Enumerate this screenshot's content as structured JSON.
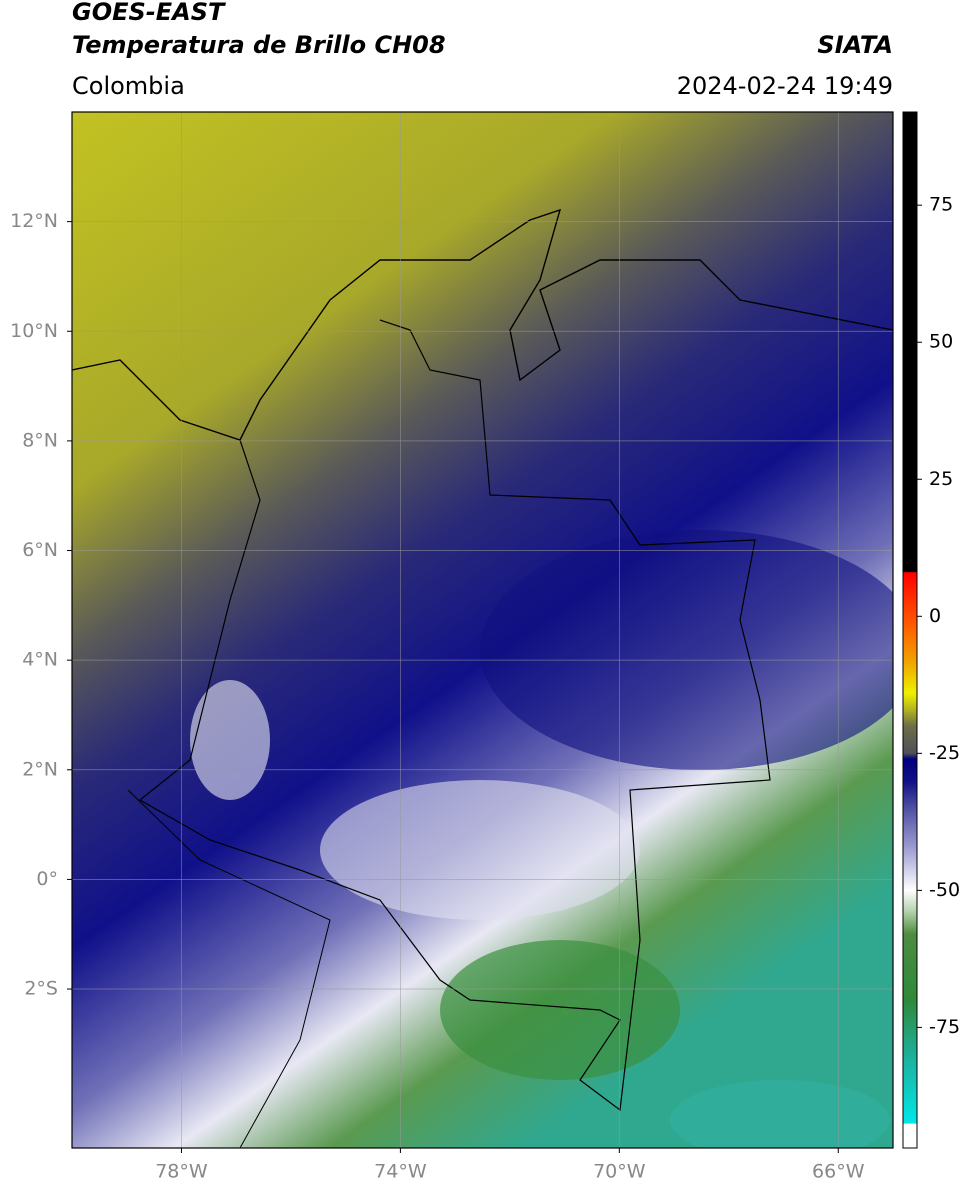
{
  "chart_data": {
    "type": "map",
    "title": "GOES-EAST",
    "subtitle": "Temperatura de Brillo CH08",
    "region": "Colombia",
    "source": "SIATA",
    "date": "2024-02-24 19:49",
    "xlim": [
      -80,
      -65
    ],
    "ylim": [
      -4.9,
      14
    ],
    "xticks": [
      {
        "value": -78,
        "label": "78°W"
      },
      {
        "value": -74,
        "label": "74°W"
      },
      {
        "value": -70,
        "label": "70°W"
      },
      {
        "value": -66,
        "label": "66°W"
      }
    ],
    "yticks": [
      {
        "value": -2,
        "label": "2°S"
      },
      {
        "value": 0,
        "label": "0°"
      },
      {
        "value": 2,
        "label": "2°N"
      },
      {
        "value": 4,
        "label": "4°N"
      },
      {
        "value": 6,
        "label": "6°N"
      },
      {
        "value": 8,
        "label": "8°N"
      },
      {
        "value": 10,
        "label": "10°N"
      },
      {
        "value": 12,
        "label": "12°N"
      }
    ],
    "grid": true,
    "colorbar": {
      "lim": [
        -97,
        92
      ],
      "ticks": [
        -75,
        -50,
        -25,
        0,
        25,
        50,
        75
      ],
      "colormap": [
        {
          "value": -97,
          "color": "#ffffff"
        },
        {
          "value": -92.6,
          "color": "#ffffff"
        },
        {
          "value": -92.5,
          "color": "#00e8e8"
        },
        {
          "value": -80,
          "color": "#1fae9a"
        },
        {
          "value": -70,
          "color": "#2e8a3a"
        },
        {
          "value": -58,
          "color": "#4e8c40"
        },
        {
          "value": -54,
          "color": "#b0d0a8"
        },
        {
          "value": -50,
          "color": "#ffffff"
        },
        {
          "value": -42,
          "color": "#9a9ad0"
        },
        {
          "value": -35,
          "color": "#5050a4"
        },
        {
          "value": -30,
          "color": "#101088"
        },
        {
          "value": -26,
          "color": "#00007e"
        },
        {
          "value": -25,
          "color": "#505058"
        },
        {
          "value": -20,
          "color": "#6e6e48"
        },
        {
          "value": -17,
          "color": "#b4b420"
        },
        {
          "value": -14,
          "color": "#f0f000"
        },
        {
          "value": -8,
          "color": "#f0a000"
        },
        {
          "value": -2,
          "color": "#ff6000"
        },
        {
          "value": 8,
          "color": "#ff0000"
        },
        {
          "value": 8.1,
          "color": "#000000"
        },
        {
          "value": 92,
          "color": "#000000"
        }
      ]
    }
  }
}
